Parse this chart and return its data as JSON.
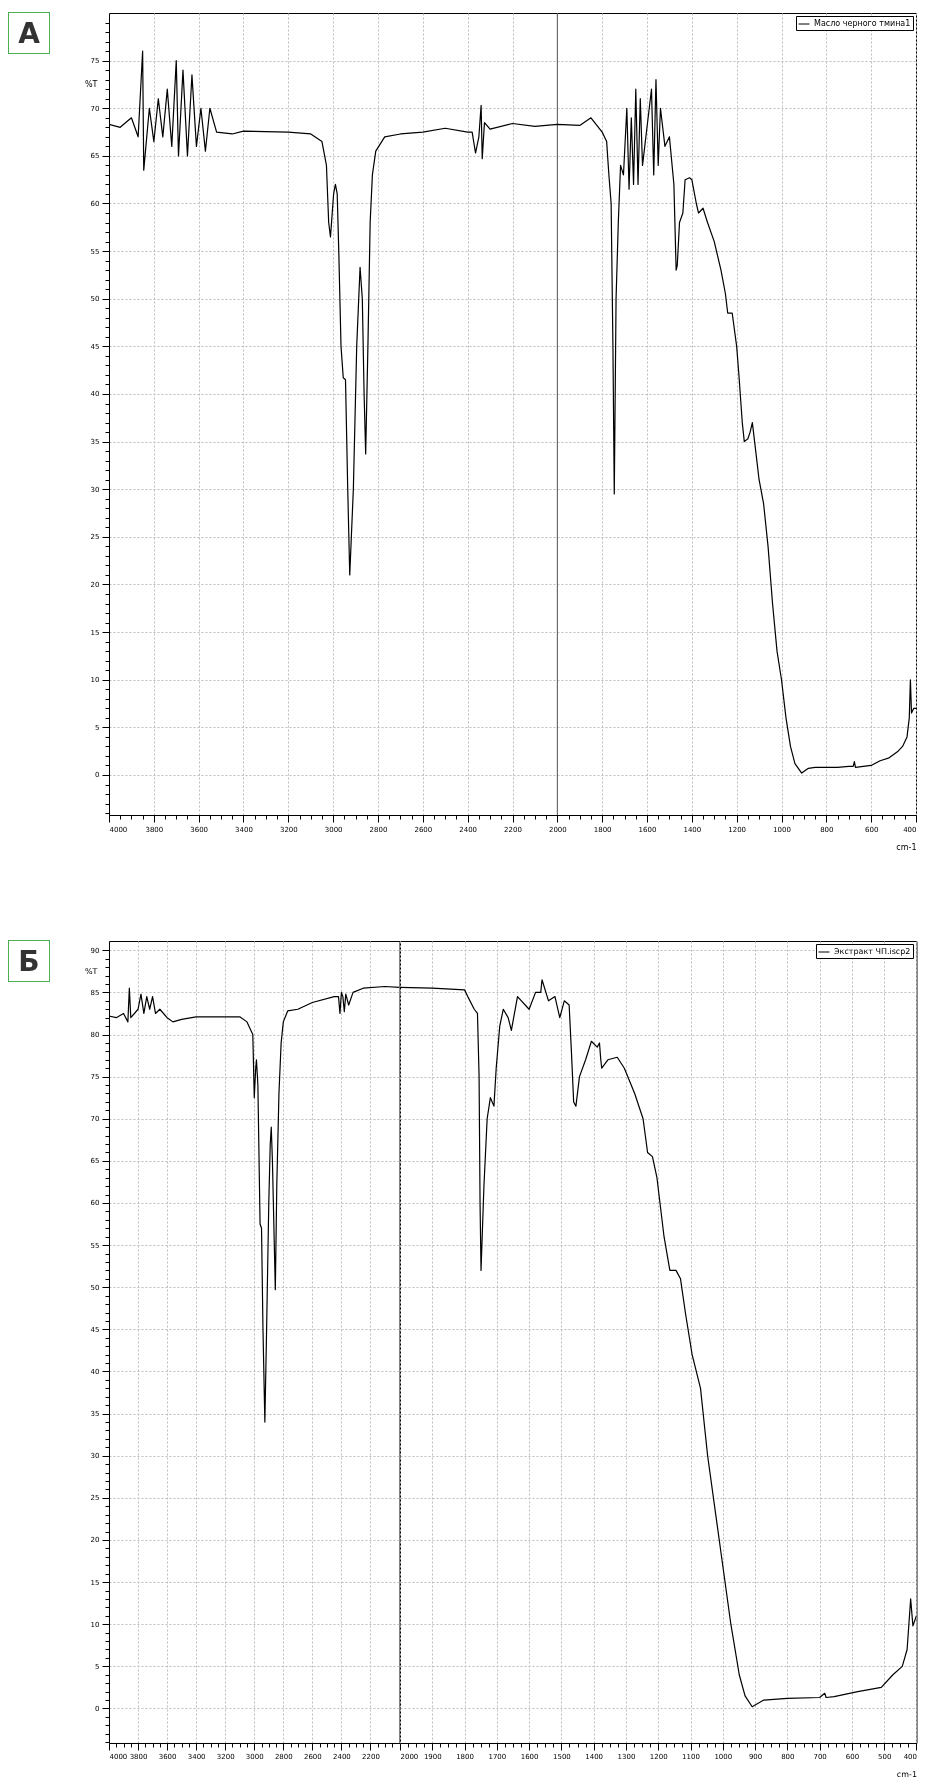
{
  "chart_data": [
    {
      "type": "line",
      "title": "А",
      "ylabel": "%T",
      "xlabel": "cm-1",
      "xlim": [
        4000,
        400
      ],
      "ylim": [
        -4.2,
        80
      ],
      "grid": true,
      "legend": "top right",
      "ref_lines": [
        {
          "axis": "x",
          "value": 2000,
          "color": "#555555"
        }
      ],
      "xticks": [
        4000,
        3800,
        3600,
        3400,
        3200,
        3000,
        2800,
        2600,
        2400,
        2200,
        2000,
        1800,
        1600,
        1400,
        1200,
        1000,
        800,
        600,
        400,
        {
          "value": 3950,
          "label": null
        },
        {
          "value": 3900,
          "label": null
        },
        {
          "value": 3850,
          "label": null
        },
        {
          "value": 3750,
          "label": null
        },
        {
          "value": 3700,
          "label": null
        },
        {
          "value": 3650,
          "label": null
        },
        {
          "value": 3550,
          "label": null
        },
        {
          "value": 3500,
          "label": null
        },
        {
          "value": 3450,
          "label": null
        },
        {
          "value": 3350,
          "label": null
        },
        {
          "value": 3300,
          "label": null
        },
        {
          "value": 3250,
          "label": null
        },
        {
          "value": 3150,
          "label": null
        },
        {
          "value": 3100,
          "label": null
        },
        {
          "value": 3050,
          "label": null
        },
        {
          "value": 2950,
          "label": null
        },
        {
          "value": 2900,
          "label": null
        },
        {
          "value": 2850,
          "label": null
        },
        {
          "value": 2750,
          "label": null
        },
        {
          "value": 2700,
          "label": null
        },
        {
          "value": 2650,
          "label": null
        },
        {
          "value": 2550,
          "label": null
        },
        {
          "value": 2500,
          "label": null
        },
        {
          "value": 2450,
          "label": null
        },
        {
          "value": 2350,
          "label": null
        },
        {
          "value": 2300,
          "label": null
        },
        {
          "value": 2250,
          "label": null
        },
        {
          "value": 2150,
          "label": null
        },
        {
          "value": 2100,
          "label": null
        },
        {
          "value": 2050,
          "label": null
        },
        {
          "value": 1950,
          "label": null
        },
        {
          "value": 1900,
          "label": null
        },
        {
          "value": 1850,
          "label": null
        },
        {
          "value": 1750,
          "label": null
        },
        {
          "value": 1700,
          "label": null
        },
        {
          "value": 1650,
          "label": null
        },
        {
          "value": 1550,
          "label": null
        },
        {
          "value": 1500,
          "label": null
        },
        {
          "value": 1450,
          "label": null
        },
        {
          "value": 1350,
          "label": null
        },
        {
          "value": 1300,
          "label": null
        },
        {
          "value": 1250,
          "label": null
        },
        {
          "value": 1150,
          "label": null
        },
        {
          "value": 1100,
          "label": null
        },
        {
          "value": 1050,
          "label": null
        },
        {
          "value": 950,
          "label": null
        },
        {
          "value": 900,
          "label": null
        },
        {
          "value": 850,
          "label": null
        },
        {
          "value": 750,
          "label": null
        },
        {
          "value": 700,
          "label": null
        },
        {
          "value": 650,
          "label": null
        },
        {
          "value": 550,
          "label": null
        },
        {
          "value": 500,
          "label": null
        },
        {
          "value": 450,
          "label": null
        }
      ],
      "yticks": [
        0,
        5,
        10,
        15,
        20,
        25,
        30,
        35,
        40,
        45,
        50,
        55,
        60,
        65,
        70,
        75,
        {
          "value": -4,
          "label": null
        },
        {
          "value": -3,
          "label": null
        },
        {
          "value": -2,
          "label": null
        },
        {
          "value": -1,
          "label": null
        },
        {
          "value": 1,
          "label": null
        },
        {
          "value": 2,
          "label": null
        },
        {
          "value": 3,
          "label": null
        },
        {
          "value": 4,
          "label": null
        },
        {
          "value": 6,
          "label": null
        },
        {
          "value": 7,
          "label": null
        },
        {
          "value": 8,
          "label": null
        },
        {
          "value": 9,
          "label": null
        },
        {
          "value": 11,
          "label": null
        },
        {
          "value": 12,
          "label": null
        },
        {
          "value": 13,
          "label": null
        },
        {
          "value": 14,
          "label": null
        },
        {
          "value": 16,
          "label": null
        },
        {
          "value": 17,
          "label": null
        },
        {
          "value": 18,
          "label": null
        },
        {
          "value": 19,
          "label": null
        },
        {
          "value": 21,
          "label": null
        },
        {
          "value": 22,
          "label": null
        },
        {
          "value": 23,
          "label": null
        },
        {
          "value": 24,
          "label": null
        },
        {
          "value": 26,
          "label": null
        },
        {
          "value": 27,
          "label": null
        },
        {
          "value": 28,
          "label": null
        },
        {
          "value": 29,
          "label": null
        },
        {
          "value": 31,
          "label": null
        },
        {
          "value": 32,
          "label": null
        },
        {
          "value": 33,
          "label": null
        },
        {
          "value": 34,
          "label": null
        },
        {
          "value": 36,
          "label": null
        },
        {
          "value": 37,
          "label": null
        },
        {
          "value": 38,
          "label": null
        },
        {
          "value": 39,
          "label": null
        },
        {
          "value": 41,
          "label": null
        },
        {
          "value": 42,
          "label": null
        },
        {
          "value": 43,
          "label": null
        },
        {
          "value": 44,
          "label": null
        },
        {
          "value": 46,
          "label": null
        },
        {
          "value": 47,
          "label": null
        },
        {
          "value": 48,
          "label": null
        },
        {
          "value": 49,
          "label": null
        },
        {
          "value": 51,
          "label": null
        },
        {
          "value": 52,
          "label": null
        },
        {
          "value": 53,
          "label": null
        },
        {
          "value": 54,
          "label": null
        },
        {
          "value": 56,
          "label": null
        },
        {
          "value": 57,
          "label": null
        },
        {
          "value": 58,
          "label": null
        },
        {
          "value": 59,
          "label": null
        },
        {
          "value": 61,
          "label": null
        },
        {
          "value": 62,
          "label": null
        },
        {
          "value": 63,
          "label": null
        },
        {
          "value": 64,
          "label": null
        },
        {
          "value": 66,
          "label": null
        },
        {
          "value": 67,
          "label": null
        },
        {
          "value": 68,
          "label": null
        },
        {
          "value": 69,
          "label": null
        },
        {
          "value": 71,
          "label": null
        },
        {
          "value": 72,
          "label": null
        },
        {
          "value": 73,
          "label": null
        },
        {
          "value": 74,
          "label": null
        },
        {
          "value": 76,
          "label": null
        },
        {
          "value": 77,
          "label": null
        },
        {
          "value": 78,
          "label": null
        },
        {
          "value": 79,
          "label": null
        }
      ],
      "x": [
        4000,
        3950,
        3900,
        3870,
        3850,
        3845,
        3820,
        3800,
        3780,
        3760,
        3740,
        3720,
        3700,
        3690,
        3670,
        3650,
        3630,
        3610,
        3590,
        3570,
        3550,
        3520,
        3450,
        3400,
        3200,
        3100,
        3050,
        3030,
        3020,
        3012,
        2998,
        2990,
        2982,
        2975,
        2965,
        2955,
        2945,
        2935,
        2926,
        2910,
        2895,
        2880,
        2870,
        2862,
        2855,
        2845,
        2835,
        2825,
        2810,
        2770,
        2700,
        2600,
        2500,
        2400,
        2380,
        2365,
        2350,
        2340,
        2335,
        2325,
        2300,
        2200,
        2100,
        2000,
        1900,
        1850,
        1800,
        1780,
        1770,
        1760,
        1752,
        1746,
        1738,
        1728,
        1718,
        1705,
        1690,
        1680,
        1670,
        1660,
        1650,
        1640,
        1630,
        1620,
        1600,
        1580,
        1570,
        1560,
        1550,
        1540,
        1520,
        1500,
        1480,
        1470,
        1465,
        1455,
        1440,
        1430,
        1410,
        1400,
        1380,
        1370,
        1350,
        1330,
        1300,
        1270,
        1250,
        1240,
        1220,
        1200,
        1190,
        1175,
        1166,
        1150,
        1140,
        1130,
        1120,
        1100,
        1080,
        1060,
        1040,
        1020,
        1000,
        980,
        960,
        940,
        910,
        880,
        850,
        800,
        750,
        700,
        680,
        675,
        670,
        600,
        560,
        520,
        480,
        460,
        440,
        430,
        425,
        420,
        410,
        400
      ],
      "series": [
        {
          "name": "Масло черного тмина1",
          "color": "#000000",
          "values": [
            68.3,
            68,
            69,
            67,
            76,
            63.5,
            70,
            66.5,
            71,
            67,
            72,
            66,
            75,
            65,
            74,
            65,
            73.5,
            66,
            70,
            65.5,
            70,
            67.5,
            67.3,
            67.6,
            67.5,
            67.3,
            66.5,
            64,
            58,
            56.5,
            61,
            62,
            61,
            55,
            45,
            41.7,
            41.5,
            30,
            21,
            30,
            45,
            53.3,
            50,
            40,
            33.7,
            45,
            58,
            63,
            65.5,
            67,
            67.3,
            67.5,
            67.9,
            67.5,
            67.5,
            65.3,
            67,
            70.3,
            64.7,
            68.5,
            67.8,
            68.4,
            68.1,
            68.3,
            68.2,
            69,
            67.5,
            66.5,
            63,
            60,
            45,
            29.5,
            50,
            58,
            64,
            63,
            70,
            61.5,
            69,
            62,
            72,
            62,
            71,
            64,
            68,
            72,
            63,
            73,
            64,
            70,
            66,
            67,
            62,
            53,
            53.5,
            58,
            59,
            62.5,
            62.7,
            62.5,
            60,
            59,
            59.5,
            58,
            56,
            53,
            50.5,
            48.5,
            48.5,
            45,
            42,
            37,
            35,
            35.3,
            36,
            37,
            35,
            31,
            28.5,
            24,
            18,
            13,
            10,
            6,
            3,
            1.2,
            0.2,
            0.7,
            0.8,
            0.8,
            0.8,
            0.9,
            0.9,
            1.4,
            0.8,
            1,
            1.5,
            1.8,
            2.5,
            3,
            4,
            6,
            10,
            6.5,
            7,
            7
          ]
        }
      ]
    },
    {
      "type": "line",
      "title": "Б",
      "ylabel": "%T",
      "xlim": [
        4000,
        2000
      ],
      "ylim": [
        -4.1,
        91.1
      ],
      "grid": true,
      "xticks": [
        4000,
        3800,
        3600,
        3400,
        3200,
        3000,
        2800,
        2600,
        2400,
        2200,
        {
          "value": 3950,
          "label": null
        },
        {
          "value": 3900,
          "label": null
        },
        {
          "value": 3850,
          "label": null
        },
        {
          "value": 3750,
          "label": null
        },
        {
          "value": 3700,
          "label": null
        },
        {
          "value": 3650,
          "label": null
        },
        {
          "value": 3550,
          "label": null
        },
        {
          "value": 3500,
          "label": null
        },
        {
          "value": 3450,
          "label": null
        },
        {
          "value": 3350,
          "label": null
        },
        {
          "value": 3300,
          "label": null
        },
        {
          "value": 3250,
          "label": null
        },
        {
          "value": 3150,
          "label": null
        },
        {
          "value": 3100,
          "label": null
        },
        {
          "value": 3050,
          "label": null
        },
        {
          "value": 2950,
          "label": null
        },
        {
          "value": 2900,
          "label": null
        },
        {
          "value": 2850,
          "label": null
        },
        {
          "value": 2750,
          "label": null
        },
        {
          "value": 2700,
          "label": null
        },
        {
          "value": 2650,
          "label": null
        },
        {
          "value": 2550,
          "label": null
        },
        {
          "value": 2500,
          "label": null
        },
        {
          "value": 2450,
          "label": null
        },
        {
          "value": 2350,
          "label": null
        },
        {
          "value": 2300,
          "label": null
        },
        {
          "value": 2250,
          "label": null
        },
        {
          "value": 2150,
          "label": null
        },
        {
          "value": 2100,
          "label": null
        },
        {
          "value": 2050,
          "label": null
        }
      ],
      "yticks": [
        0,
        5,
        10,
        15,
        20,
        25,
        30,
        35,
        40,
        45,
        50,
        55,
        60,
        65,
        70,
        75,
        80,
        85,
        90,
        {
          "value": -4,
          "label": null
        },
        {
          "value": -3,
          "label": null
        },
        {
          "value": -2,
          "label": null
        },
        {
          "value": -1,
          "label": null
        },
        {
          "value": 1,
          "label": null
        },
        {
          "value": 2,
          "label": null
        },
        {
          "value": 3,
          "label": null
        },
        {
          "value": 4,
          "label": null
        },
        {
          "value": 6,
          "label": null
        },
        {
          "value": 7,
          "label": null
        },
        {
          "value": 8,
          "label": null
        },
        {
          "value": 9,
          "label": null
        },
        {
          "value": 11,
          "label": null
        },
        {
          "value": 12,
          "label": null
        },
        {
          "value": 13,
          "label": null
        },
        {
          "value": 14,
          "label": null
        },
        {
          "value": 16,
          "label": null
        },
        {
          "value": 17,
          "label": null
        },
        {
          "value": 18,
          "label": null
        },
        {
          "value": 19,
          "label": null
        },
        {
          "value": 21,
          "label": null
        },
        {
          "value": 22,
          "label": null
        },
        {
          "value": 23,
          "label": null
        },
        {
          "value": 24,
          "label": null
        },
        {
          "value": 26,
          "label": null
        },
        {
          "value": 27,
          "label": null
        },
        {
          "value": 28,
          "label": null
        },
        {
          "value": 29,
          "label": null
        },
        {
          "value": 31,
          "label": null
        },
        {
          "value": 32,
          "label": null
        },
        {
          "value": 33,
          "label": null
        },
        {
          "value": 34,
          "label": null
        },
        {
          "value": 36,
          "label": null
        },
        {
          "value": 37,
          "label": null
        },
        {
          "value": 38,
          "label": null
        },
        {
          "value": 39,
          "label": null
        },
        {
          "value": 41,
          "label": null
        },
        {
          "value": 42,
          "label": null
        },
        {
          "value": 43,
          "label": null
        },
        {
          "value": 44,
          "label": null
        },
        {
          "value": 46,
          "label": null
        },
        {
          "value": 47,
          "label": null
        },
        {
          "value": 48,
          "label": null
        },
        {
          "value": 49,
          "label": null
        },
        {
          "value": 51,
          "label": null
        },
        {
          "value": 52,
          "label": null
        },
        {
          "value": 53,
          "label": null
        },
        {
          "value": 54,
          "label": null
        },
        {
          "value": 56,
          "label": null
        },
        {
          "value": 57,
          "label": null
        },
        {
          "value": 58,
          "label": null
        },
        {
          "value": 59,
          "label": null
        },
        {
          "value": 61,
          "label": null
        },
        {
          "value": 62,
          "label": null
        },
        {
          "value": 63,
          "label": null
        },
        {
          "value": 64,
          "label": null
        },
        {
          "value": 66,
          "label": null
        },
        {
          "value": 67,
          "label": null
        },
        {
          "value": 68,
          "label": null
        },
        {
          "value": 69,
          "label": null
        },
        {
          "value": 71,
          "label": null
        },
        {
          "value": 72,
          "label": null
        },
        {
          "value": 73,
          "label": null
        },
        {
          "value": 74,
          "label": null
        },
        {
          "value": 76,
          "label": null
        },
        {
          "value": 77,
          "label": null
        },
        {
          "value": 78,
          "label": null
        },
        {
          "value": 79,
          "label": null
        },
        {
          "value": 81,
          "label": null
        },
        {
          "value": 82,
          "label": null
        },
        {
          "value": 83,
          "label": null
        },
        {
          "value": 84,
          "label": null
        },
        {
          "value": 86,
          "label": null
        },
        {
          "value": 87,
          "label": null
        },
        {
          "value": 88,
          "label": null
        },
        {
          "value": 89,
          "label": null
        }
      ],
      "x": [
        4000,
        3950,
        3900,
        3870,
        3860,
        3850,
        3800,
        3780,
        3760,
        3740,
        3720,
        3700,
        3680,
        3650,
        3600,
        3560,
        3500,
        3400,
        3200,
        3100,
        3050,
        3010,
        3000,
        2990,
        2985,
        2975,
        2960,
        2950,
        2940,
        2927,
        2915,
        2900,
        2890,
        2883,
        2875,
        2862,
        2855,
        2845,
        2830,
        2815,
        2800,
        2770,
        2700,
        2600,
        2450,
        2420,
        2410,
        2400,
        2390,
        2380,
        2370,
        2350,
        2320,
        2250,
        2100,
        2000
      ],
      "series": [
        {
          "color": "#000000",
          "values": [
            82.2,
            82,
            82.5,
            81.5,
            85.5,
            82,
            83,
            84.8,
            82.5,
            84.5,
            83,
            84.5,
            82.5,
            83,
            82,
            81.5,
            81.8,
            82.1,
            82.1,
            82.1,
            81.5,
            80,
            72.5,
            76,
            77,
            74,
            57.5,
            57,
            45,
            34,
            45,
            60,
            67,
            69,
            65,
            55,
            49.7,
            62,
            73,
            79,
            81.5,
            82.8,
            83,
            83.8,
            84.5,
            84.5,
            82.5,
            85,
            84.5,
            82.7,
            84.8,
            83.5,
            85,
            85.5,
            85.7,
            85.6
          ]
        }
      ]
    },
    {
      "type": "line",
      "xlabel": "cm-1",
      "xlim": [
        2000,
        400
      ],
      "ylim": [
        -4.1,
        91.1
      ],
      "grid": true,
      "legend": "top right",
      "tick_labels": "x",
      "xticks": [
        2000,
        1900,
        1800,
        1700,
        1600,
        1500,
        1400,
        1300,
        1200,
        1100,
        1000,
        900,
        800,
        700,
        600,
        500,
        400,
        {
          "value": 1975,
          "label": null
        },
        {
          "value": 1950,
          "label": null
        },
        {
          "value": 1925,
          "label": null
        },
        {
          "value": 1875,
          "label": null
        },
        {
          "value": 1850,
          "label": null
        },
        {
          "value": 1825,
          "label": null
        },
        {
          "value": 1775,
          "label": null
        },
        {
          "value": 1750,
          "label": null
        },
        {
          "value": 1725,
          "label": null
        },
        {
          "value": 1675,
          "label": null
        },
        {
          "value": 1650,
          "label": null
        },
        {
          "value": 1625,
          "label": null
        },
        {
          "value": 1575,
          "label": null
        },
        {
          "value": 1550,
          "label": null
        },
        {
          "value": 1525,
          "label": null
        },
        {
          "value": 1475,
          "label": null
        },
        {
          "value": 1450,
          "label": null
        },
        {
          "value": 1425,
          "label": null
        },
        {
          "value": 1375,
          "label": null
        },
        {
          "value": 1350,
          "label": null
        },
        {
          "value": 1325,
          "label": null
        },
        {
          "value": 1275,
          "label": null
        },
        {
          "value": 1250,
          "label": null
        },
        {
          "value": 1225,
          "label": null
        },
        {
          "value": 1175,
          "label": null
        },
        {
          "value": 1150,
          "label": null
        },
        {
          "value": 1125,
          "label": null
        },
        {
          "value": 1075,
          "label": null
        },
        {
          "value": 1050,
          "label": null
        },
        {
          "value": 1025,
          "label": null
        },
        {
          "value": 975,
          "label": null
        },
        {
          "value": 950,
          "label": null
        },
        {
          "value": 925,
          "label": null
        },
        {
          "value": 875,
          "label": null
        },
        {
          "value": 850,
          "label": null
        },
        {
          "value": 825,
          "label": null
        },
        {
          "value": 775,
          "label": null
        },
        {
          "value": 750,
          "label": null
        },
        {
          "value": 725,
          "label": null
        },
        {
          "value": 675,
          "label": null
        },
        {
          "value": 650,
          "label": null
        },
        {
          "value": 625,
          "label": null
        },
        {
          "value": 575,
          "label": null
        },
        {
          "value": 550,
          "label": null
        },
        {
          "value": 525,
          "label": null
        },
        {
          "value": 475,
          "label": null
        },
        {
          "value": 450,
          "label": null
        },
        {
          "value": 425,
          "label": null
        }
      ],
      "yticks": [
        0,
        5,
        10,
        15,
        20,
        25,
        30,
        35,
        40,
        45,
        50,
        55,
        60,
        65,
        70,
        75,
        80,
        85,
        90
      ],
      "x": [
        2000,
        1900,
        1800,
        1790,
        1770,
        1760,
        1755,
        1752,
        1749,
        1740,
        1730,
        1720,
        1709,
        1702,
        1691,
        1680,
        1665,
        1655,
        1636,
        1600,
        1580,
        1564,
        1560,
        1540,
        1520,
        1505,
        1491,
        1476,
        1469,
        1462,
        1455,
        1444,
        1425,
        1407,
        1389,
        1382,
        1378,
        1375,
        1356,
        1327,
        1305,
        1273,
        1247,
        1233,
        1218,
        1204,
        1182,
        1164,
        1145,
        1131,
        1116,
        1095,
        1069,
        1047,
        1011,
        975,
        949,
        931,
        909,
        873,
        800,
        700,
        684,
        680,
        655,
        582,
        509,
        473,
        444,
        429,
        418,
        411,
        400
      ],
      "series": [
        {
          "name": "Экстракт ЧП.iscp2",
          "color": "#000000",
          "values": [
            85.6,
            85.5,
            85.3,
            84.5,
            83,
            82.5,
            75,
            60,
            52,
            62,
            70,
            72.5,
            71.5,
            76,
            81,
            83,
            82,
            80.5,
            84.5,
            83,
            85,
            85,
            86.5,
            84,
            84.5,
            82,
            84,
            83.5,
            78,
            72,
            71.5,
            75,
            77,
            79.2,
            78.5,
            79,
            77,
            76,
            77,
            77.3,
            76,
            73,
            70,
            66,
            65.5,
            63,
            56,
            52,
            52,
            51,
            47,
            42,
            38,
            30,
            20,
            10,
            4,
            1.5,
            0.2,
            1,
            1.2,
            1.3,
            1.8,
            1.3,
            1.4,
            2,
            2.5,
            4,
            5,
            7,
            13,
            9.8,
            11
          ]
        }
      ]
    }
  ]
}
